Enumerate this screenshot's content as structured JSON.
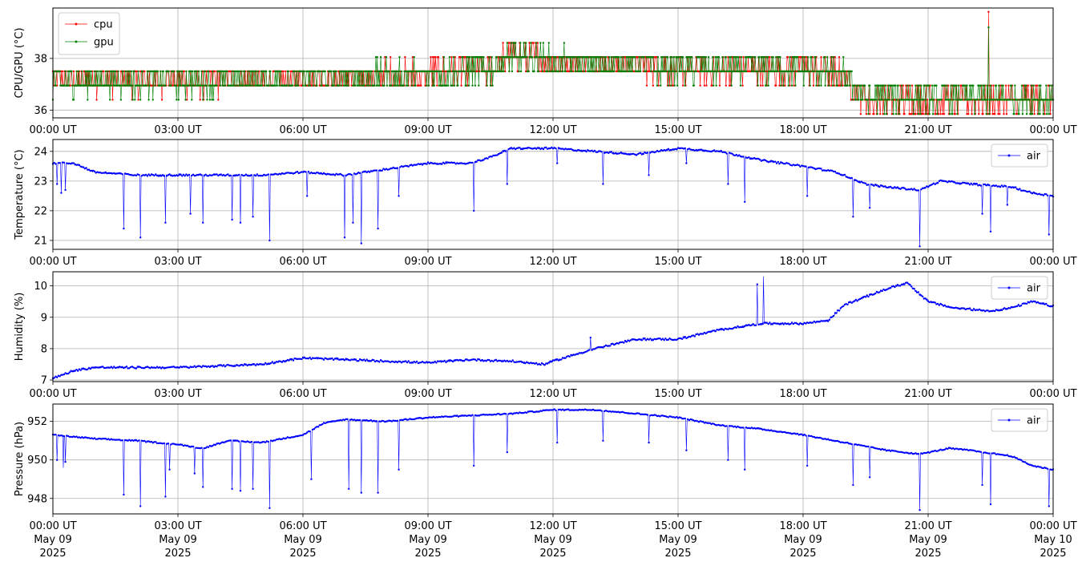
{
  "chart_data": [
    {
      "type": "line",
      "ylabel": "CPU/GPU (°C)",
      "ylim": [
        35.7,
        39.95
      ],
      "yticks": [
        36,
        38
      ],
      "grid": true,
      "legend": "top-left",
      "series": [
        {
          "name": "cpu",
          "color": "#ff0000",
          "baseline": [
            [
              0,
              37.2
            ],
            [
              3,
              37.1
            ],
            [
              6,
              37.2
            ],
            [
              9,
              37.4
            ],
            [
              10.5,
              37.6
            ],
            [
              11,
              38.1
            ],
            [
              12,
              37.9
            ],
            [
              14,
              37.7
            ],
            [
              15,
              37.6
            ],
            [
              18,
              37.6
            ],
            [
              19,
              37.3
            ],
            [
              19.5,
              36.4
            ],
            [
              21,
              36.4
            ],
            [
              22.4,
              36.4
            ],
            [
              24,
              36.4
            ]
          ],
          "spike": [
            22.45,
            39.8
          ]
        },
        {
          "name": "gpu",
          "color": "#008000",
          "baseline": [
            [
              0,
              37.1
            ],
            [
              3,
              37.1
            ],
            [
              6,
              37.2
            ],
            [
              9,
              37.4
            ],
            [
              10.5,
              37.6
            ],
            [
              11,
              38.1
            ],
            [
              12,
              37.9
            ],
            [
              14,
              37.7
            ],
            [
              15,
              37.6
            ],
            [
              18,
              37.6
            ],
            [
              19,
              37.3
            ],
            [
              19.5,
              36.5
            ],
            [
              21,
              36.5
            ],
            [
              22.4,
              36.5
            ],
            [
              24,
              36.5
            ]
          ],
          "spike": [
            22.45,
            39.2
          ]
        }
      ]
    },
    {
      "type": "line",
      "ylabel": "Temperature (°C)",
      "ylim": [
        20.7,
        24.4
      ],
      "yticks": [
        21,
        22,
        23,
        24
      ],
      "grid": true,
      "legend": "top-right",
      "series": [
        {
          "name": "air",
          "color": "#0000ff",
          "baseline": [
            [
              0,
              23.6
            ],
            [
              0.5,
              23.6
            ],
            [
              1,
              23.3
            ],
            [
              2,
              23.2
            ],
            [
              3,
              23.2
            ],
            [
              4,
              23.2
            ],
            [
              5,
              23.2
            ],
            [
              6,
              23.3
            ],
            [
              7,
              23.2
            ],
            [
              8,
              23.4
            ],
            [
              9,
              23.6
            ],
            [
              10,
              23.6
            ],
            [
              10.5,
              23.8
            ],
            [
              11,
              24.1
            ],
            [
              12,
              24.1
            ],
            [
              13,
              24.0
            ],
            [
              14,
              23.9
            ],
            [
              15,
              24.1
            ],
            [
              16,
              24.0
            ],
            [
              17,
              23.7
            ],
            [
              18,
              23.5
            ],
            [
              18.8,
              23.3
            ],
            [
              19.5,
              22.9
            ],
            [
              20,
              22.8
            ],
            [
              20.8,
              22.7
            ],
            [
              21.3,
              23.0
            ],
            [
              22,
              22.9
            ],
            [
              23,
              22.8
            ],
            [
              23.5,
              22.6
            ],
            [
              24,
              22.5
            ]
          ],
          "dips": [
            [
              0.1,
              22.9
            ],
            [
              0.2,
              22.6
            ],
            [
              0.3,
              22.7
            ],
            [
              1.7,
              21.4
            ],
            [
              2.1,
              21.1
            ],
            [
              2.7,
              21.6
            ],
            [
              3.3,
              21.9
            ],
            [
              3.6,
              21.6
            ],
            [
              4.3,
              21.7
            ],
            [
              4.5,
              21.6
            ],
            [
              4.8,
              21.8
            ],
            [
              5.2,
              21.0
            ],
            [
              6.1,
              22.5
            ],
            [
              7,
              21.1
            ],
            [
              7.2,
              21.6
            ],
            [
              7.4,
              20.9
            ],
            [
              7.8,
              21.4
            ],
            [
              8.3,
              22.5
            ],
            [
              10.1,
              22.0
            ],
            [
              10.9,
              22.9
            ],
            [
              12.1,
              23.6
            ],
            [
              13.2,
              22.9
            ],
            [
              14.3,
              23.2
            ],
            [
              15.2,
              23.6
            ],
            [
              16.2,
              22.9
            ],
            [
              16.6,
              22.3
            ],
            [
              18.1,
              22.5
            ],
            [
              19.2,
              21.8
            ],
            [
              19.6,
              22.1
            ],
            [
              20.8,
              20.8
            ],
            [
              22.3,
              21.9
            ],
            [
              22.5,
              21.3
            ],
            [
              22.9,
              22.2
            ],
            [
              23.9,
              21.2
            ]
          ]
        }
      ]
    },
    {
      "type": "line",
      "ylabel": "Humidity (%)",
      "ylim": [
        6.95,
        10.45
      ],
      "yticks": [
        7,
        8,
        9,
        10
      ],
      "grid": true,
      "legend": "top-right",
      "series": [
        {
          "name": "air",
          "color": "#0000ff",
          "baseline": [
            [
              0,
              7.05
            ],
            [
              0.5,
              7.3
            ],
            [
              1,
              7.4
            ],
            [
              2,
              7.4
            ],
            [
              3,
              7.4
            ],
            [
              4,
              7.45
            ],
            [
              5,
              7.5
            ],
            [
              6,
              7.7
            ],
            [
              7,
              7.65
            ],
            [
              8,
              7.6
            ],
            [
              9,
              7.55
            ],
            [
              10,
              7.65
            ],
            [
              11,
              7.6
            ],
            [
              11.8,
              7.5
            ],
            [
              12,
              7.6
            ],
            [
              13,
              8.0
            ],
            [
              14,
              8.3
            ],
            [
              15,
              8.3
            ],
            [
              16,
              8.6
            ],
            [
              17,
              8.8
            ],
            [
              18,
              8.8
            ],
            [
              18.6,
              8.9
            ],
            [
              19,
              9.4
            ],
            [
              20,
              9.9
            ],
            [
              20.5,
              10.1
            ],
            [
              21,
              9.5
            ],
            [
              21.6,
              9.3
            ],
            [
              22.5,
              9.2
            ],
            [
              23,
              9.3
            ],
            [
              23.5,
              9.5
            ],
            [
              24,
              9.35
            ]
          ],
          "dips": [
            [
              16.9,
              10.05
            ],
            [
              17.05,
              10.3
            ],
            [
              12.9,
              8.35
            ]
          ]
        }
      ]
    },
    {
      "type": "line",
      "ylabel": "Pressure (hPa)",
      "ylim": [
        947.2,
        952.9
      ],
      "yticks": [
        948,
        950,
        952
      ],
      "grid": true,
      "legend": "top-right",
      "series": [
        {
          "name": "air",
          "color": "#0000ff",
          "baseline": [
            [
              0,
              951.3
            ],
            [
              1,
              951.1
            ],
            [
              2,
              951.0
            ],
            [
              3,
              950.8
            ],
            [
              3.6,
              950.6
            ],
            [
              4.2,
              951.0
            ],
            [
              5,
              950.9
            ],
            [
              6,
              951.3
            ],
            [
              6.5,
              951.9
            ],
            [
              7,
              952.1
            ],
            [
              8,
              952.0
            ],
            [
              9,
              952.2
            ],
            [
              10,
              952.3
            ],
            [
              11,
              952.4
            ],
            [
              12,
              952.6
            ],
            [
              13,
              952.6
            ],
            [
              14,
              952.4
            ],
            [
              15,
              952.2
            ],
            [
              16,
              951.8
            ],
            [
              17,
              951.6
            ],
            [
              18,
              951.3
            ],
            [
              19,
              950.9
            ],
            [
              20,
              950.5
            ],
            [
              20.8,
              950.3
            ],
            [
              21.5,
              950.6
            ],
            [
              22,
              950.5
            ],
            [
              23,
              950.2
            ],
            [
              23.5,
              949.7
            ],
            [
              24,
              949.5
            ]
          ],
          "dips": [
            [
              0.1,
              950.0
            ],
            [
              0.25,
              949.6
            ],
            [
              0.3,
              949.9
            ],
            [
              1.7,
              948.2
            ],
            [
              2.1,
              947.6
            ],
            [
              2.7,
              948.1
            ],
            [
              2.8,
              949.5
            ],
            [
              3.4,
              949.3
            ],
            [
              3.6,
              948.6
            ],
            [
              4.3,
              948.5
            ],
            [
              4.5,
              948.4
            ],
            [
              4.8,
              948.5
            ],
            [
              5.2,
              947.5
            ],
            [
              6.2,
              949.0
            ],
            [
              7.1,
              948.5
            ],
            [
              7.4,
              948.3
            ],
            [
              7.8,
              948.3
            ],
            [
              8.3,
              949.5
            ],
            [
              10.1,
              949.7
            ],
            [
              10.9,
              950.4
            ],
            [
              12.1,
              950.9
            ],
            [
              13.2,
              951.0
            ],
            [
              14.3,
              950.9
            ],
            [
              15.2,
              950.5
            ],
            [
              16.2,
              950.0
            ],
            [
              16.6,
              949.5
            ],
            [
              18.1,
              949.7
            ],
            [
              19.2,
              948.7
            ],
            [
              19.6,
              949.1
            ],
            [
              20.8,
              947.4
            ],
            [
              22.3,
              948.7
            ],
            [
              22.5,
              947.7
            ],
            [
              23.9,
              947.6
            ]
          ]
        }
      ]
    }
  ],
  "x_axis": {
    "ticks": [
      "00:00 UT",
      "03:00 UT",
      "06:00 UT",
      "09:00 UT",
      "12:00 UT",
      "15:00 UT",
      "18:00 UT",
      "21:00 UT",
      "00:00 UT"
    ],
    "date_lines": [
      [
        "May 09",
        "2025"
      ],
      [
        "May 09",
        "2025"
      ],
      [
        "May 09",
        "2025"
      ],
      [
        "May 09",
        "2025"
      ],
      [
        "May 09",
        "2025"
      ],
      [
        "May 09",
        "2025"
      ],
      [
        "May 09",
        "2025"
      ],
      [
        "May 09",
        "2025"
      ],
      [
        "May 10",
        "2025"
      ]
    ]
  }
}
